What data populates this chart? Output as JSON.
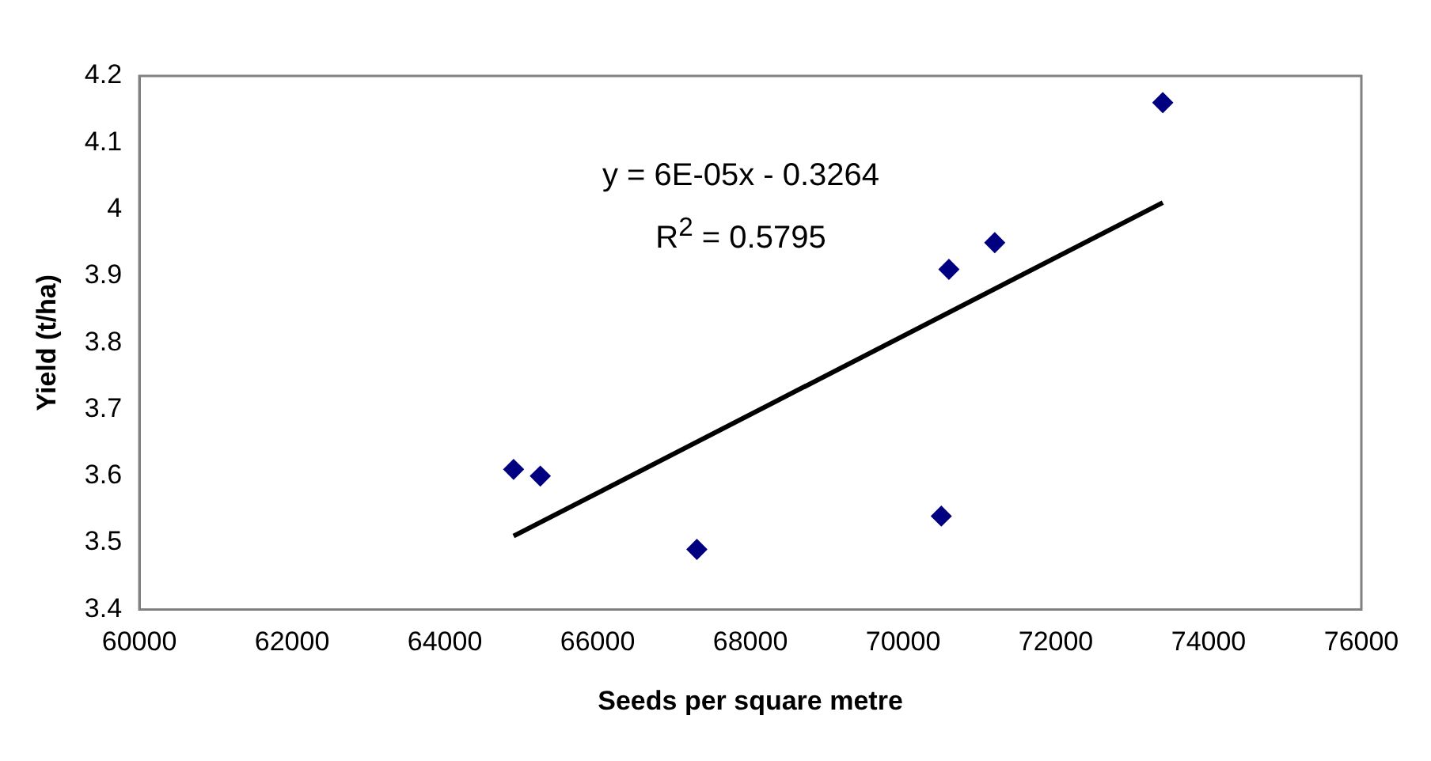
{
  "chart_data": {
    "type": "scatter",
    "xlabel": "Seeds per square metre",
    "ylabel": "Yield (t/ha)",
    "xlim": [
      60000,
      76000
    ],
    "xticks": [
      60000,
      62000,
      64000,
      66000,
      68000,
      70000,
      72000,
      74000,
      76000
    ],
    "ylim": [
      3.4,
      4.2
    ],
    "yticks": [
      3.4,
      3.5,
      3.6,
      3.7,
      3.8,
      3.9,
      4,
      4.1,
      4.2
    ],
    "grid": false,
    "legend": false,
    "marker": "diamond",
    "series": [
      {
        "color": "#000080",
        "x": [
          64900,
          65250,
          67300,
          70500,
          70600,
          71200,
          73400
        ],
        "values": [
          3.61,
          3.6,
          3.49,
          3.54,
          3.91,
          3.95,
          4.16
        ]
      },
      {
        "type": "line",
        "color": "#000000",
        "marker": "none",
        "x": [
          64900,
          73400
        ],
        "values": [
          3.51,
          4.01
        ]
      }
    ],
    "annotations": [
      "y = 6E-05x - 0.3264",
      "R$^{2}$ = 0.5795"
    ]
  }
}
